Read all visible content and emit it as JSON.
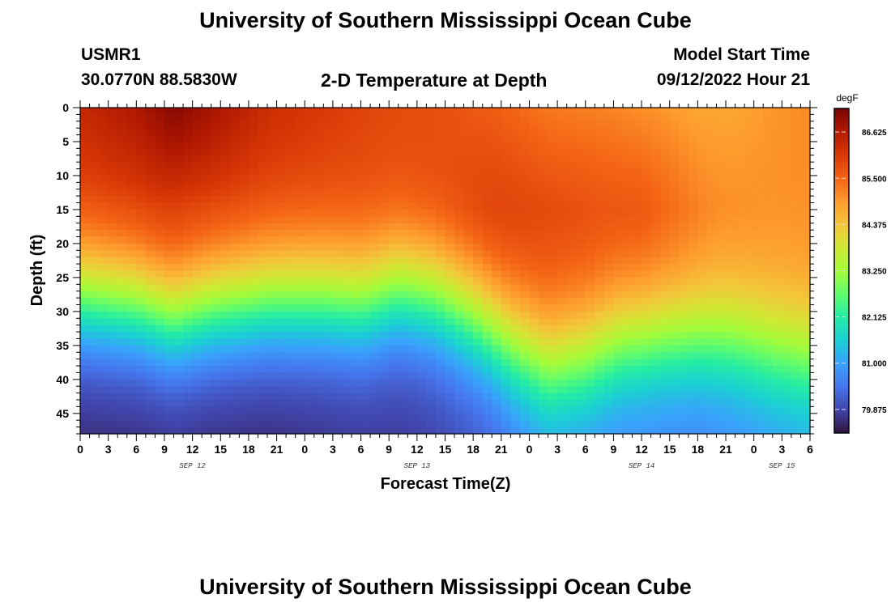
{
  "header": {
    "title": "University of Southern Mississippi Ocean Cube",
    "station": "USMR1",
    "coordinates": "30.0770N  88.5830W",
    "model_start_label": "Model Start Time",
    "model_start_value": "09/12/2022 Hour 21",
    "footer_title": "University of Southern Mississippi Ocean Cube"
  },
  "chart_data": {
    "type": "heatmap",
    "title": "2-D Temperature at Depth",
    "xlabel": "Forecast Time(Z)",
    "ylabel": "Depth (ft)",
    "x_range_hours": [
      0,
      78
    ],
    "x_ticks": [
      {
        "hour": 0,
        "label": "0"
      },
      {
        "hour": 3,
        "label": "3"
      },
      {
        "hour": 6,
        "label": "6"
      },
      {
        "hour": 9,
        "label": "9"
      },
      {
        "hour": 12,
        "label": "12"
      },
      {
        "hour": 15,
        "label": "15"
      },
      {
        "hour": 18,
        "label": "18"
      },
      {
        "hour": 21,
        "label": "21"
      },
      {
        "hour": 24,
        "label": "0"
      },
      {
        "hour": 27,
        "label": "3"
      },
      {
        "hour": 30,
        "label": "6"
      },
      {
        "hour": 33,
        "label": "9"
      },
      {
        "hour": 36,
        "label": "12"
      },
      {
        "hour": 39,
        "label": "15"
      },
      {
        "hour": 42,
        "label": "18"
      },
      {
        "hour": 45,
        "label": "21"
      },
      {
        "hour": 48,
        "label": "0"
      },
      {
        "hour": 51,
        "label": "3"
      },
      {
        "hour": 54,
        "label": "6"
      },
      {
        "hour": 57,
        "label": "9"
      },
      {
        "hour": 60,
        "label": "12"
      },
      {
        "hour": 63,
        "label": "15"
      },
      {
        "hour": 66,
        "label": "18"
      },
      {
        "hour": 69,
        "label": "21"
      },
      {
        "hour": 72,
        "label": "0"
      },
      {
        "hour": 75,
        "label": "3"
      },
      {
        "hour": 78,
        "label": "6"
      }
    ],
    "date_labels": [
      {
        "hour": 12,
        "label": "SEP 12"
      },
      {
        "hour": 36,
        "label": "SEP 13"
      },
      {
        "hour": 60,
        "label": "SEP 14"
      },
      {
        "hour": 75,
        "label": "SEP 15"
      }
    ],
    "y_range_ft": [
      0,
      48
    ],
    "y_ticks": [
      0,
      5,
      10,
      15,
      20,
      25,
      30,
      35,
      40,
      45
    ],
    "colorbar": {
      "unit": "degF",
      "min": 79.3,
      "max": 87.2,
      "ticks": [
        "86.625",
        "85.500",
        "84.375",
        "83.250",
        "82.125",
        "81.000",
        "79.875"
      ]
    },
    "thermocline_depth_ft": [
      {
        "hour": 0,
        "depth": 28
      },
      {
        "hour": 6,
        "depth": 29
      },
      {
        "hour": 10,
        "depth": 31
      },
      {
        "hour": 14,
        "depth": 29.5
      },
      {
        "hour": 20,
        "depth": 28.5
      },
      {
        "hour": 26,
        "depth": 28.5
      },
      {
        "hour": 30,
        "depth": 29
      },
      {
        "hour": 34,
        "depth": 27
      },
      {
        "hour": 38,
        "depth": 28
      },
      {
        "hour": 42,
        "depth": 31
      },
      {
        "hour": 46,
        "depth": 35
      },
      {
        "hour": 50,
        "depth": 38
      },
      {
        "hour": 54,
        "depth": 37
      },
      {
        "hour": 58,
        "depth": 34.5
      },
      {
        "hour": 62,
        "depth": 34
      },
      {
        "hour": 66,
        "depth": 34
      },
      {
        "hour": 70,
        "depth": 34.5
      },
      {
        "hour": 74,
        "depth": 36
      },
      {
        "hour": 78,
        "depth": 37
      }
    ],
    "surface_temperature_degF": [
      {
        "hour": 0,
        "value": 86.4
      },
      {
        "hour": 6,
        "value": 86.7
      },
      {
        "hour": 10,
        "value": 87.1
      },
      {
        "hour": 14,
        "value": 86.8
      },
      {
        "hour": 20,
        "value": 86.3
      },
      {
        "hour": 26,
        "value": 86.1
      },
      {
        "hour": 32,
        "value": 85.9
      },
      {
        "hour": 38,
        "value": 85.8
      },
      {
        "hour": 44,
        "value": 85.6
      },
      {
        "hour": 50,
        "value": 85.3
      },
      {
        "hour": 56,
        "value": 85.2
      },
      {
        "hour": 62,
        "value": 85.0
      },
      {
        "hour": 66,
        "value": 84.8
      },
      {
        "hour": 70,
        "value": 84.8
      },
      {
        "hour": 74,
        "value": 85.0
      },
      {
        "hour": 78,
        "value": 85.1
      }
    ],
    "mixed_layer_temperature_degF": [
      {
        "hour": 0,
        "value": 86.1
      },
      {
        "hour": 8,
        "value": 86.3
      },
      {
        "hour": 14,
        "value": 86.2
      },
      {
        "hour": 22,
        "value": 86.0
      },
      {
        "hour": 30,
        "value": 85.9
      },
      {
        "hour": 38,
        "value": 86.0
      },
      {
        "hour": 44,
        "value": 86.1
      },
      {
        "hour": 50,
        "value": 85.9
      },
      {
        "hour": 56,
        "value": 85.8
      },
      {
        "hour": 60,
        "value": 85.8
      },
      {
        "hour": 64,
        "value": 85.5
      },
      {
        "hour": 68,
        "value": 85.2
      },
      {
        "hour": 74,
        "value": 85.1
      },
      {
        "hour": 78,
        "value": 85.1
      }
    ],
    "bottom_temperature_degF": [
      {
        "hour": 0,
        "value": 79.5
      },
      {
        "hour": 20,
        "value": 79.5
      },
      {
        "hour": 36,
        "value": 79.7
      },
      {
        "hour": 44,
        "value": 80.0
      },
      {
        "hour": 50,
        "value": 80.6
      },
      {
        "hour": 56,
        "value": 80.5
      },
      {
        "hour": 66,
        "value": 80.4
      },
      {
        "hour": 78,
        "value": 80.8
      }
    ],
    "colors": [
      "#30123b",
      "#4145ab",
      "#4675ed",
      "#39a2fc",
      "#1bcfd4",
      "#24eca6",
      "#61fc6c",
      "#a4fc3b",
      "#d1e834",
      "#f3c63a",
      "#fe9b2d",
      "#f36315",
      "#d93806",
      "#b11901",
      "#7a0402"
    ]
  }
}
